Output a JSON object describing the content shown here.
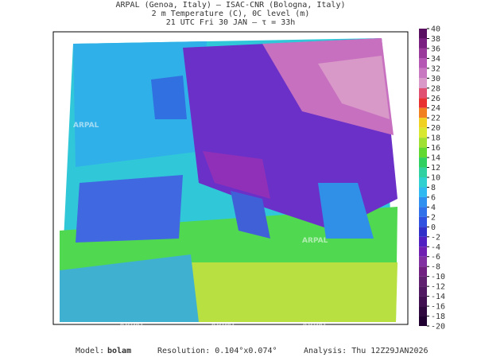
{
  "header": {
    "line1": "ARPAL (Genoa, Italy)  —  ISAC-CNR (Bologna, Italy)",
    "line2": "2 m Temperature (C), 0C level (m)",
    "line3": "21 UTC Fri 30 JAN  —  τ = 33h"
  },
  "colorbar": {
    "ticks": [
      40,
      38,
      36,
      34,
      32,
      30,
      28,
      26,
      24,
      22,
      20,
      18,
      16,
      14,
      12,
      10,
      8,
      6,
      4,
      2,
      0,
      -2,
      -4,
      -6,
      -8,
      -10,
      -12,
      -14,
      -16,
      -18,
      -20
    ],
    "colors": [
      "#5a1060",
      "#7a2080",
      "#9a3a9a",
      "#b458b4",
      "#c878c0",
      "#d898c8",
      "#e05070",
      "#e83030",
      "#f08020",
      "#f0d020",
      "#d8e830",
      "#a0e030",
      "#60d830",
      "#30d060",
      "#30d0a0",
      "#30d0d0",
      "#30b8f0",
      "#3090f0",
      "#3070e8",
      "#3050e0",
      "#3030c8",
      "#5020c0",
      "#7020b0",
      "#8030a0",
      "#702080",
      "#602070",
      "#501860",
      "#401050",
      "#300840",
      "#200030"
    ]
  },
  "watermark": "ARPAL",
  "footer": {
    "model_label": "Model:",
    "model": "bolam",
    "resolution": "Resolution: 0.104°x0.074°",
    "analysis": "Analysis: Thu  12Z29JAN2026"
  }
}
